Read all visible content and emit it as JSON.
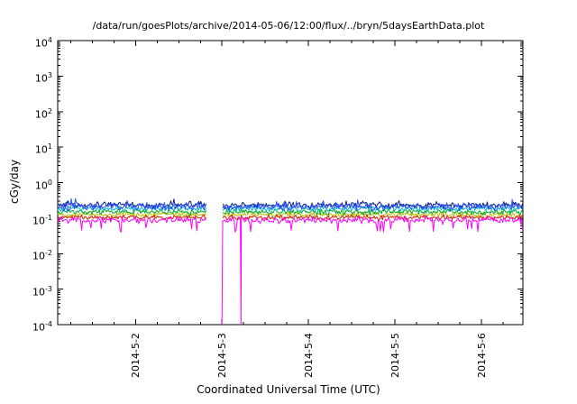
{
  "chart_data": {
    "type": "line",
    "title": "/data/run/goesPlots/archive/2014-05-06/12:00/flux/../bryn/5daysEarthData.plot",
    "xlabel": "Coordinated Universal Time (UTC)",
    "ylabel": "cGy/day",
    "y_scale": "log",
    "ylim": [
      0.0001,
      10000
    ],
    "y_tick_exponents": [
      4,
      3,
      2,
      1,
      0,
      -1,
      -2,
      -3,
      -4
    ],
    "x_domain_days": [
      -0.9,
      4.48
    ],
    "x_ticks": [
      {
        "label": "2014-5-2",
        "day": 0
      },
      {
        "label": "2014-5-3",
        "day": 1
      },
      {
        "label": "2014-5-4",
        "day": 2
      },
      {
        "label": "2014-5-5",
        "day": 3
      },
      {
        "label": "2014-5-6",
        "day": 4
      }
    ],
    "grid": false,
    "legend": "none",
    "gap": {
      "start_day": 0.82,
      "end_day": 1.0
    },
    "sample_step_days": 0.012,
    "series": [
      {
        "name": "olive",
        "color": "#b8b800",
        "base": 0.125,
        "spread": 0.1
      },
      {
        "name": "red",
        "color": "#cc2200",
        "base": 0.105,
        "spread": 0.1
      },
      {
        "name": "green",
        "color": "#00aa22",
        "base": 0.15,
        "spread": 0.12
      },
      {
        "name": "cyan",
        "color": "#00b8c8",
        "base": 0.185,
        "spread": 0.12
      },
      {
        "name": "navy",
        "color": "#001a8c",
        "base": 0.235,
        "spread": 0.13,
        "up_prob": 0.03,
        "up_factor": 1.35
      },
      {
        "name": "blue",
        "color": "#2a50ff",
        "base": 0.21,
        "spread": 0.15,
        "up_prob": 0.03,
        "up_factor": 1.3
      },
      {
        "name": "magenta",
        "color": "#ff00ff",
        "base": 0.088,
        "spread": 0.14,
        "dip_prob": 0.05,
        "dip_factor": 0.5,
        "floor_spikes": [
          1.0,
          1.22
        ]
      }
    ]
  }
}
